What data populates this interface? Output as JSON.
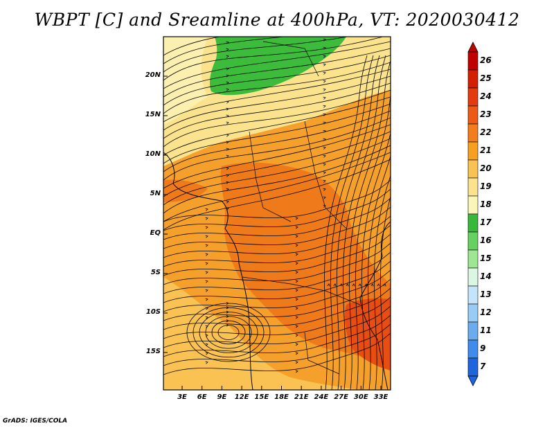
{
  "title": "WBPT [C] and Sreamline at 400hPa, VT: 2020030412",
  "credit": "GrADS: IGES/COLA",
  "lat_labels": [
    "20N",
    "15N",
    "10N",
    "5N",
    "EQ",
    "5S",
    "10S",
    "15S"
  ],
  "lon_labels": [
    "3E",
    "6E",
    "9E",
    "12E",
    "15E",
    "18E",
    "21E",
    "24E",
    "27E",
    "30E",
    "33E"
  ],
  "colorbar": {
    "labels": [
      "26",
      "25",
      "24",
      "23",
      "22",
      "21",
      "20",
      "19",
      "18",
      "17",
      "16",
      "15",
      "14",
      "13",
      "12",
      "11",
      "9",
      "7"
    ],
    "colors": [
      "#c00000",
      "#d41e00",
      "#e33a10",
      "#ee5a16",
      "#f47c1a",
      "#f7a020",
      "#f9c252",
      "#fbe38e",
      "#fbf5b8",
      "#37b83a",
      "#66d160",
      "#9fe694",
      "#dbf6e2",
      "#c3e4fa",
      "#98ccf6",
      "#6aacee",
      "#3f8cec",
      "#1e64dc"
    ]
  },
  "colors": {
    "green": "#3cbc3a",
    "pale_yellow": "#fbf0b0",
    "light_orange": "#f9c252",
    "orange": "#f4a02a",
    "dark_orange": "#ee7a1a",
    "red_orange": "#e84d12"
  }
}
